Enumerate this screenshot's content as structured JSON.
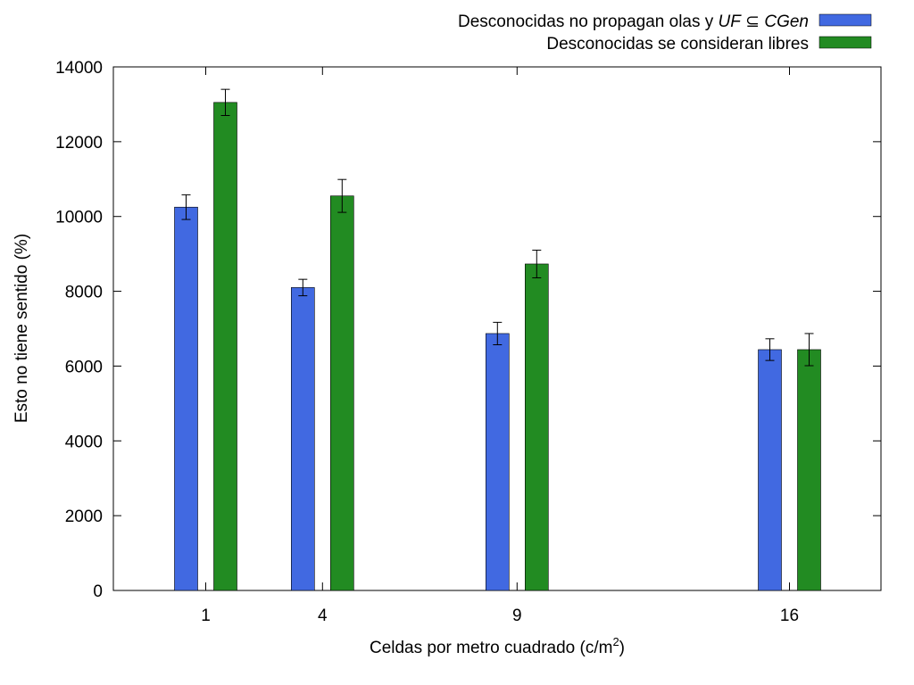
{
  "chart_data": {
    "type": "bar",
    "title": "",
    "xlabel": "Celdas por metro cuadrado (c/m",
    "xlabel_superscript": "2",
    "xlabel_suffix": ")",
    "ylabel": "Esto no tiene sentido (%)",
    "ylim": [
      0,
      14000
    ],
    "yticks": [
      "0",
      "2000",
      "4000",
      "6000",
      "8000",
      "10000",
      "12000",
      "14000"
    ],
    "x": [
      1,
      4,
      9,
      16
    ],
    "categories": [
      "1",
      "4",
      "9",
      "16"
    ],
    "grid": false,
    "legend_position": "top-right",
    "error_bars": true,
    "series": [
      {
        "name_parts": [
          "Desconocidas no propagan olas y ",
          "UF",
          " ⊆ ",
          "CGen"
        ],
        "name": "Desconocidas no propagan olas y UF ⊆ CGen",
        "color": "#4169e1",
        "values": [
          10250,
          8100,
          6870,
          6440
        ],
        "errors": [
          330,
          220,
          300,
          290
        ]
      },
      {
        "name": "Desconocidas se consideran libres",
        "color": "#228b22",
        "values": [
          13050,
          10550,
          8730,
          6440
        ],
        "errors": [
          350,
          440,
          370,
          430
        ]
      }
    ]
  }
}
